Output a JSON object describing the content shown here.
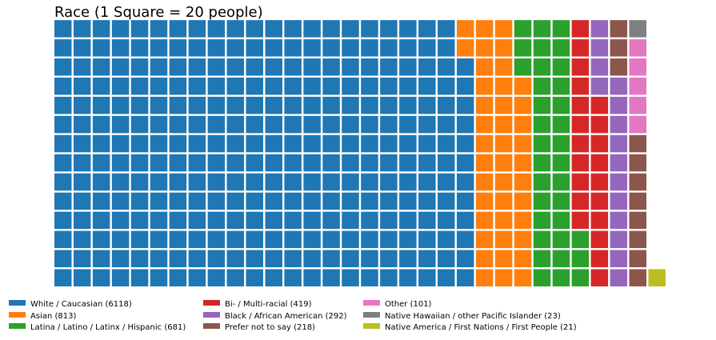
{
  "chart_data": {
    "type": "waffle",
    "title": "Race (1 Square = 20 people)",
    "rows": 14,
    "square_value": 20,
    "fill_order": "column-major, bottom-to-top, left-to-right",
    "categories": [
      {
        "name": "White / Caucasian",
        "label": "White / Caucasian (6118)",
        "value": 6118,
        "squares": 306,
        "color": "#1f77b4"
      },
      {
        "name": "Asian",
        "label": "Asian (813)",
        "value": 813,
        "squares": 41,
        "color": "#ff7f0e"
      },
      {
        "name": "Latina / Latino / Latinx / Hispanic",
        "label": "Latina / Latino / Latinx / Hispanic (681)",
        "value": 681,
        "squares": 34,
        "color": "#2ca02c"
      },
      {
        "name": "Bi- / Multi-racial",
        "label": "Bi- / Multi-racial (419)",
        "value": 419,
        "squares": 21,
        "color": "#d62728"
      },
      {
        "name": "Black / African American",
        "label": "Black / African American (292)",
        "value": 292,
        "squares": 15,
        "color": "#9467bd"
      },
      {
        "name": "Prefer not to say",
        "label": "Prefer not to say (218)",
        "value": 218,
        "squares": 11,
        "color": "#8c564b"
      },
      {
        "name": "Other",
        "label": "Other (101)",
        "value": 101,
        "squares": 5,
        "color": "#e377c2"
      },
      {
        "name": "Native Hawaiian / other Pacific Islander",
        "label": "Native Hawaiian / other Pacific Islander (23)",
        "value": 23,
        "squares": 1,
        "color": "#7f7f7f"
      },
      {
        "name": "Native America / First Nations / First People",
        "label": "Native America / First Nations / First People (21)",
        "value": 21,
        "squares": 1,
        "color": "#bcbd22"
      }
    ],
    "legend_position": "bottom",
    "legend_columns": 4
  }
}
